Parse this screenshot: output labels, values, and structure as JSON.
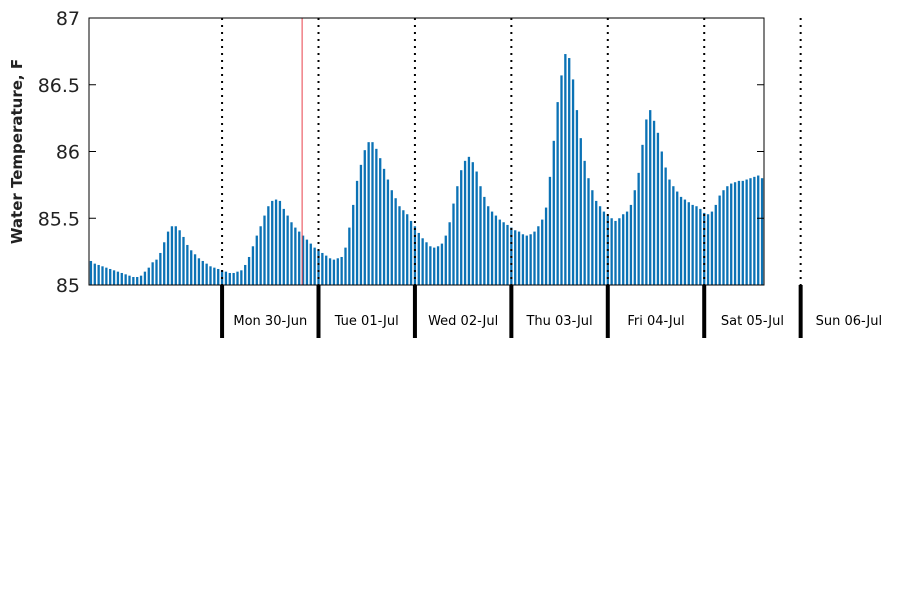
{
  "chart_data": {
    "type": "bar",
    "title": "",
    "ylabel": "Water Temperature, F",
    "xlabel": "",
    "ylim": [
      85,
      87
    ],
    "yticks": [
      85,
      85.5,
      86,
      86.5,
      87
    ],
    "ytick_labels": [
      "85",
      "85.5",
      "86",
      "86.5",
      "87"
    ],
    "grid": false,
    "colors": {
      "bar": "#0b72b5",
      "marker_line": "#e8404a",
      "day_divider": "#000000"
    },
    "x_range_days": [
      -1.38,
      5.62
    ],
    "marker_line_day": 0.83,
    "days": [
      "Mon 30-Jun",
      "Tue 01-Jul",
      "Wed 02-Jul",
      "Thu 03-Jul",
      "Fri 04-Jul",
      "Sat 05-Jul",
      "Sun 06-Jul"
    ],
    "values": [
      85.18,
      85.16,
      85.15,
      85.14,
      85.13,
      85.12,
      85.11,
      85.1,
      85.09,
      85.08,
      85.07,
      85.06,
      85.06,
      85.07,
      85.1,
      85.13,
      85.17,
      85.19,
      85.24,
      85.32,
      85.4,
      85.44,
      85.44,
      85.41,
      85.36,
      85.3,
      85.26,
      85.23,
      85.2,
      85.18,
      85.16,
      85.14,
      85.13,
      85.12,
      85.11,
      85.1,
      85.09,
      85.09,
      85.1,
      85.11,
      85.15,
      85.21,
      85.29,
      85.37,
      85.44,
      85.52,
      85.59,
      85.63,
      85.64,
      85.63,
      85.57,
      85.52,
      85.47,
      85.43,
      85.4,
      85.37,
      85.34,
      85.31,
      85.28,
      85.26,
      85.24,
      85.22,
      85.2,
      85.19,
      85.2,
      85.21,
      85.28,
      85.43,
      85.6,
      85.78,
      85.9,
      86.01,
      86.07,
      86.07,
      86.02,
      85.95,
      85.87,
      85.79,
      85.71,
      85.65,
      85.59,
      85.56,
      85.53,
      85.48,
      85.44,
      85.39,
      85.35,
      85.32,
      85.29,
      85.28,
      85.29,
      85.31,
      85.37,
      85.47,
      85.61,
      85.74,
      85.86,
      85.93,
      85.96,
      85.92,
      85.85,
      85.74,
      85.66,
      85.59,
      85.55,
      85.52,
      85.49,
      85.47,
      85.45,
      85.43,
      85.41,
      85.4,
      85.38,
      85.37,
      85.38,
      85.4,
      85.44,
      85.49,
      85.58,
      85.81,
      86.08,
      86.37,
      86.57,
      86.73,
      86.7,
      86.54,
      86.31,
      86.1,
      85.93,
      85.8,
      85.71,
      85.63,
      85.59,
      85.55,
      85.52,
      85.5,
      85.48,
      85.5,
      85.53,
      85.55,
      85.6,
      85.71,
      85.84,
      86.05,
      86.24,
      86.31,
      86.23,
      86.14,
      86.0,
      85.88,
      85.79,
      85.74,
      85.7,
      85.66,
      85.64,
      85.62,
      85.6,
      85.59,
      85.57,
      85.54,
      85.53,
      85.55,
      85.6,
      85.67,
      85.71,
      85.74,
      85.76,
      85.77,
      85.78,
      85.78,
      85.79,
      85.8,
      85.81,
      85.82,
      85.8
    ]
  }
}
